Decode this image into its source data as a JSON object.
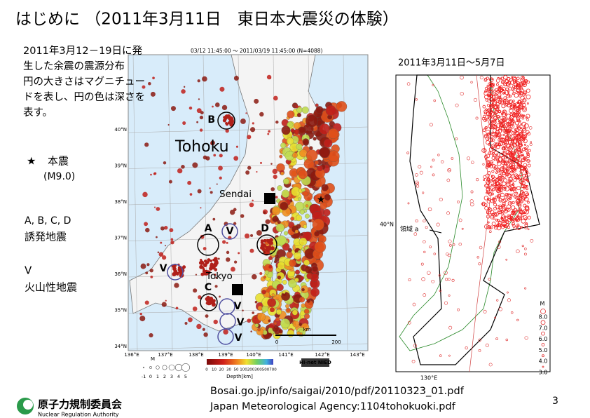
{
  "title": "はじめに （2011年3月11日　東日本大震災の体験）",
  "description": [
    "2011年3月12－19日に発",
    "生した余震の震源分布",
    "円の大きさはマグニチュー",
    "ドを表し、円の色は深さを",
    "表す。"
  ],
  "legend": {
    "mainshock_symbol": "★",
    "mainshock": "本震",
    "magnitude": "(M9.0)",
    "triggered_labels": "A, B, C, D",
    "triggered": "誘発地震",
    "volcanic_label": "V",
    "volcanic": "火山性地震"
  },
  "left_map": {
    "header": "03/12 11:45:00 ～ 2011/03/19 11:45:00 (N=4088)",
    "region": "Tohoku",
    "cities": [
      "Sendai",
      "Tokyo"
    ],
    "clusters": [
      "A",
      "B",
      "C",
      "D"
    ],
    "volcano_marks": [
      "V",
      "V",
      "V",
      "V",
      "V"
    ],
    "lat_labels": [
      "40°N",
      "39°N",
      "38°N",
      "37°N",
      "36°N",
      "35°N",
      "34°N"
    ],
    "lon_labels": [
      "136°E",
      "137°E",
      "138°E",
      "139°E",
      "140°E",
      "141°E",
      "142°E",
      "143°E"
    ],
    "magnitude_label": "M",
    "magnitude_ticks": [
      "-1",
      "0",
      "1",
      "2",
      "3",
      "4",
      "5"
    ],
    "depth_label": "Depth[km]",
    "depth_ticks": [
      "0",
      "10",
      "20",
      "30",
      "50",
      "100",
      "200",
      "300",
      "500",
      "700"
    ],
    "scale_unit": "km",
    "scale_ticks": [
      "0",
      "200"
    ],
    "credit": "Hi-net NIED"
  },
  "right_map": {
    "period": "2011年3月11日～5月7日",
    "lat_label": "40°N",
    "lon_label": "130°E",
    "region": "領域 a",
    "magnitude_label": "M",
    "magnitude_ticks": [
      "8.0",
      "7.0",
      "6.0",
      "5.0",
      "4.0",
      "3.0"
    ]
  },
  "footer": {
    "sources": [
      "Bosai.go.jp/info/saigai/2010/pdf/20110323_01.pdf",
      "Japan Meteorological Agency:1104tohokuoki.pdf"
    ],
    "page": "3",
    "org": "原子力規制委員会",
    "org_en": "Nuclear Regulation Authority"
  }
}
